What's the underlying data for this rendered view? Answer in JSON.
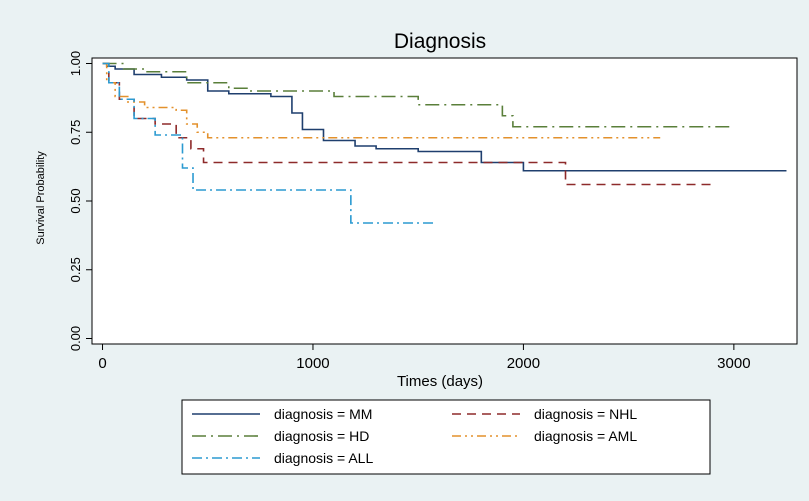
{
  "chart_data": {
    "type": "line",
    "title": "Diagnosis",
    "xlabel": "Times (days)",
    "ylabel": "Survival Probability",
    "xlim": [
      -50,
      3300
    ],
    "ylim": [
      -0.02,
      1.02
    ],
    "xticks": [
      0,
      1000,
      2000,
      3000
    ],
    "yticks": [
      0,
      0.25,
      0.5,
      0.75,
      1
    ],
    "ytick_labels": [
      "0.00",
      "0.25",
      "0.50",
      "0.75",
      "1.00"
    ],
    "grid": false,
    "legend_position": "bottom",
    "series": [
      {
        "name": "diagnosis = MM",
        "color": "#1f3f6e",
        "dash": "",
        "x": [
          0,
          20,
          60,
          150,
          280,
          400,
          500,
          600,
          800,
          900,
          950,
          1050,
          1200,
          1300,
          1500,
          1800,
          2000,
          3250
        ],
        "y": [
          1.0,
          0.99,
          0.98,
          0.96,
          0.95,
          0.94,
          0.9,
          0.89,
          0.88,
          0.82,
          0.76,
          0.72,
          0.7,
          0.69,
          0.68,
          0.64,
          0.61,
          0.61
        ]
      },
      {
        "name": "diagnosis = NHL",
        "color": "#8e2a2a",
        "dash": "9,6",
        "x": [
          0,
          30,
          80,
          150,
          250,
          350,
          420,
          480,
          1000,
          1800,
          2200,
          2900
        ],
        "y": [
          1.0,
          0.93,
          0.87,
          0.8,
          0.78,
          0.73,
          0.69,
          0.64,
          0.64,
          0.64,
          0.56,
          0.56
        ]
      },
      {
        "name": "diagnosis = HD",
        "color": "#5a7f3a",
        "dash": "14,5,2,5",
        "x": [
          0,
          100,
          200,
          400,
          600,
          700,
          1100,
          1500,
          1900,
          1950,
          3000
        ],
        "y": [
          1.0,
          0.98,
          0.97,
          0.93,
          0.91,
          0.9,
          0.88,
          0.85,
          0.81,
          0.77,
          0.77
        ]
      },
      {
        "name": "diagnosis = AML",
        "color": "#e3912c",
        "dash": "9,4,2,4,2,4",
        "x": [
          0,
          20,
          60,
          120,
          200,
          350,
          400,
          450,
          500,
          1000,
          2000,
          2650
        ],
        "y": [
          1.0,
          0.93,
          0.88,
          0.86,
          0.84,
          0.83,
          0.78,
          0.75,
          0.73,
          0.73,
          0.73,
          0.73
        ]
      },
      {
        "name": "diagnosis = ALL",
        "color": "#2b9ad1",
        "dash": "10,4,2,4",
        "x": [
          0,
          30,
          80,
          150,
          250,
          380,
          430,
          1180,
          1580
        ],
        "y": [
          1.0,
          0.93,
          0.87,
          0.8,
          0.74,
          0.62,
          0.54,
          0.42,
          0.42
        ]
      }
    ]
  }
}
